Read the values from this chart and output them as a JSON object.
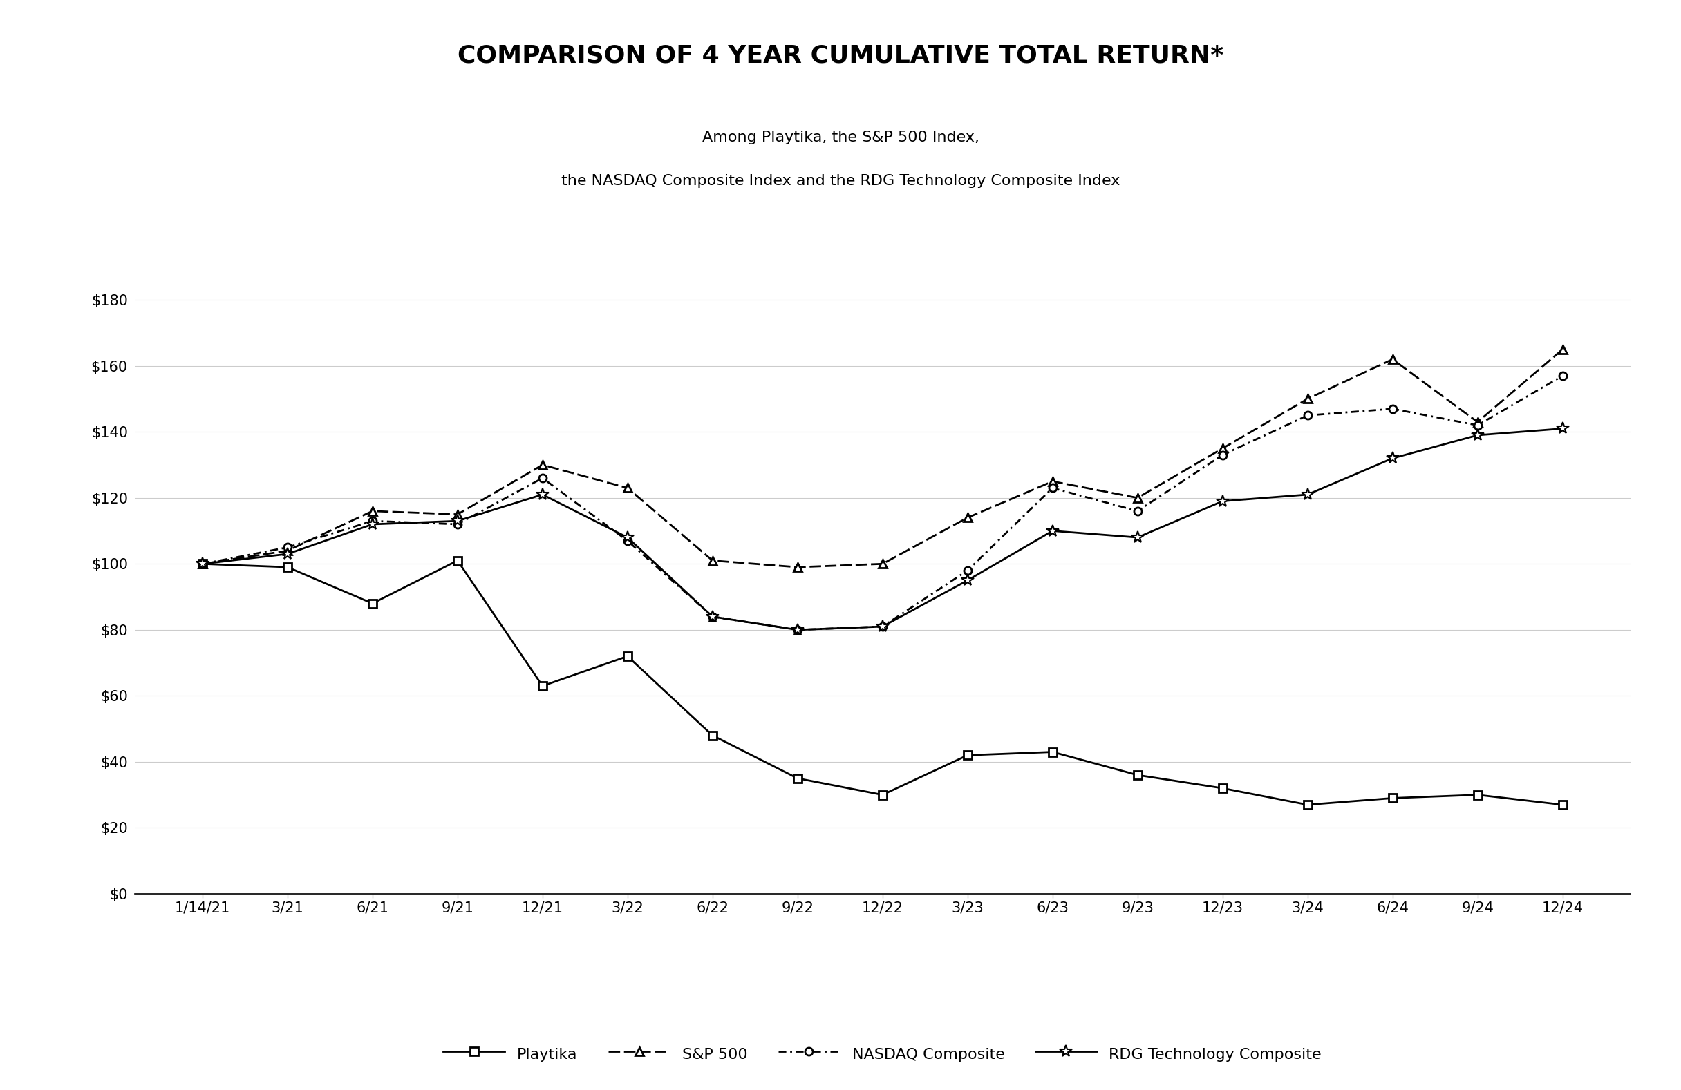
{
  "title": "COMPARISON OF 4 YEAR CUMULATIVE TOTAL RETURN*",
  "subtitle_line1": "Among Playtika, the S&P 500 Index,",
  "subtitle_line2": "the NASDAQ Composite Index and the RDG Technology Composite Index",
  "x_labels": [
    "1/14/21",
    "3/21",
    "6/21",
    "9/21",
    "12/21",
    "3/22",
    "6/22",
    "9/22",
    "12/22",
    "3/23",
    "6/23",
    "9/23",
    "12/23",
    "3/24",
    "6/24",
    "9/24",
    "12/24"
  ],
  "playtika": [
    100,
    99,
    88,
    101,
    63,
    72,
    48,
    35,
    30,
    42,
    43,
    36,
    32,
    27,
    29,
    30,
    27
  ],
  "sp500": [
    100,
    104,
    116,
    115,
    130,
    123,
    101,
    99,
    100,
    114,
    125,
    120,
    135,
    150,
    162,
    143,
    165
  ],
  "nasdaq": [
    100,
    105,
    113,
    112,
    126,
    107,
    84,
    80,
    81,
    98,
    123,
    116,
    133,
    145,
    147,
    142,
    157
  ],
  "rdg": [
    100,
    103,
    112,
    113,
    121,
    108,
    84,
    80,
    81,
    95,
    110,
    108,
    119,
    121,
    132,
    139,
    141
  ],
  "ylim": [
    0,
    185
  ],
  "yticks": [
    0,
    20,
    40,
    60,
    80,
    100,
    120,
    140,
    160,
    180
  ],
  "background_color": "#ffffff",
  "line_color": "#000000",
  "title_fontsize": 26,
  "subtitle_fontsize": 16,
  "tick_fontsize": 15,
  "legend_fontsize": 16
}
